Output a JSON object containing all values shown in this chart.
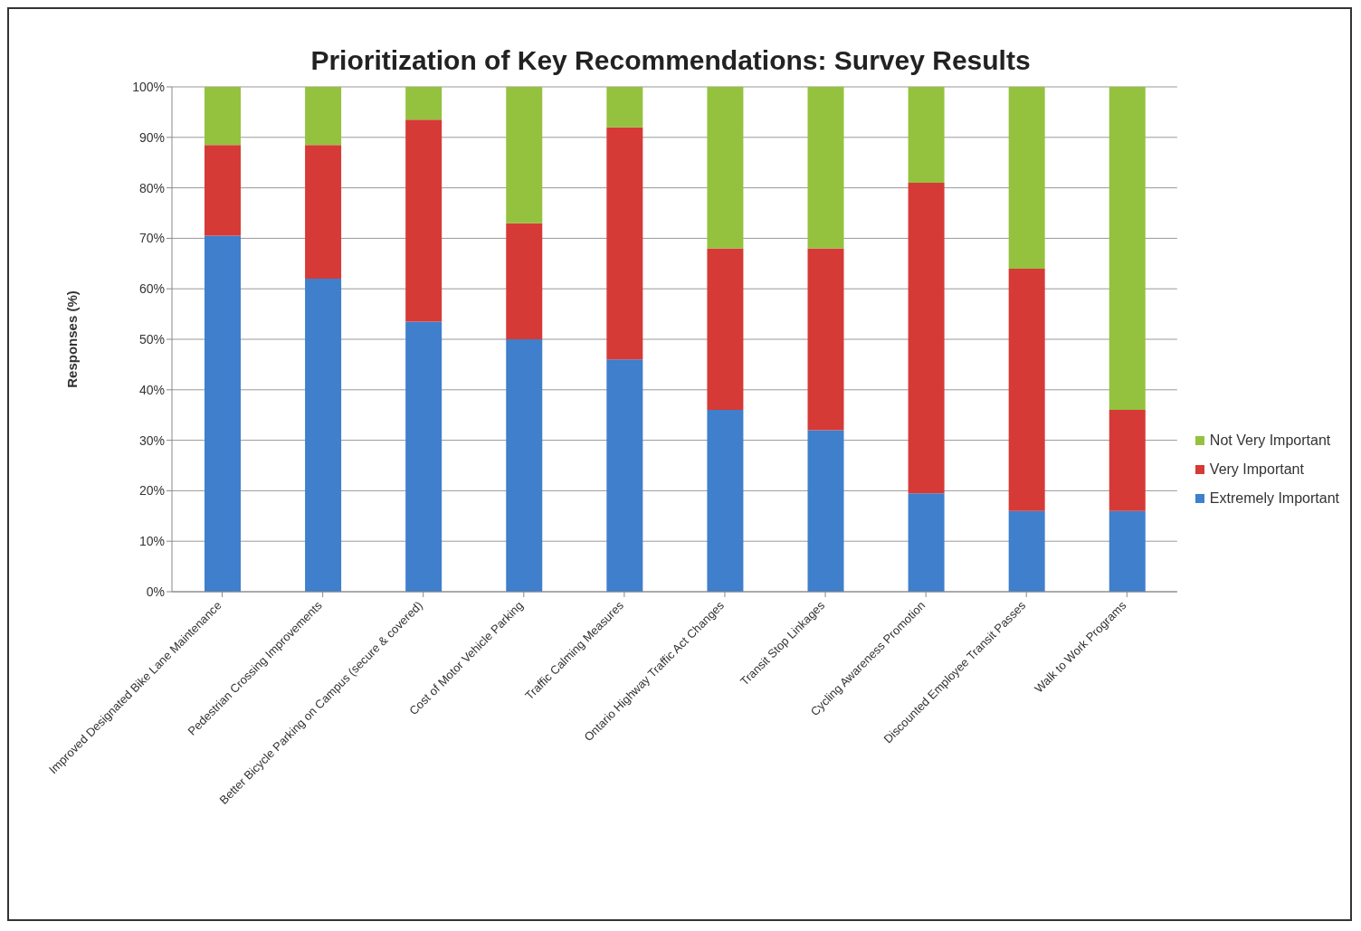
{
  "chart_data": {
    "type": "bar",
    "title": "Prioritization of Key Recommendations: Survey Results",
    "ylabel": "Responses (%)",
    "categories": [
      "Improved Designated Bike Lane Maintenance",
      "Pedestrian Crossing Improvements",
      "Better Bicycle Parking on Campus (secure & covered)",
      "Cost of Motor Vehicle Parking",
      "Traffic Calming Measures",
      "Ontario Highway Traffic Act Changes",
      "Transit Stop Linkages",
      "Cycling Awareness Promotion",
      "Discounted Employee Transit Passes",
      "Walk to Work Programs"
    ],
    "series": [
      {
        "name": "Extremely Important",
        "color": "#3f7fcc",
        "values": [
          70.5,
          62,
          53.5,
          50,
          46,
          36,
          32,
          19.5,
          16,
          16
        ]
      },
      {
        "name": "Very Important",
        "color": "#d63a36",
        "values": [
          18,
          26.5,
          40,
          23,
          46,
          32,
          36,
          61.5,
          48,
          20
        ]
      },
      {
        "name": "Not Very Important",
        "color": "#94c23f",
        "values": [
          11.5,
          11.5,
          6.5,
          27,
          8,
          32,
          32,
          19,
          36,
          64
        ]
      }
    ],
    "stacked": true,
    "ylim": [
      0,
      100
    ],
    "yticks": [
      {
        "value": 0,
        "label": "0%"
      },
      {
        "value": 10,
        "label": "10%"
      },
      {
        "value": 20,
        "label": "20%"
      },
      {
        "value": 30,
        "label": "30%"
      },
      {
        "value": 40,
        "label": "40%"
      },
      {
        "value": 50,
        "label": "50%"
      },
      {
        "value": 60,
        "label": "60%"
      },
      {
        "value": 70,
        "label": "70%"
      },
      {
        "value": 80,
        "label": "80%"
      },
      {
        "value": 90,
        "label": "90%"
      },
      {
        "value": 100,
        "label": "100%"
      }
    ],
    "grid": "y",
    "legend": "right"
  }
}
